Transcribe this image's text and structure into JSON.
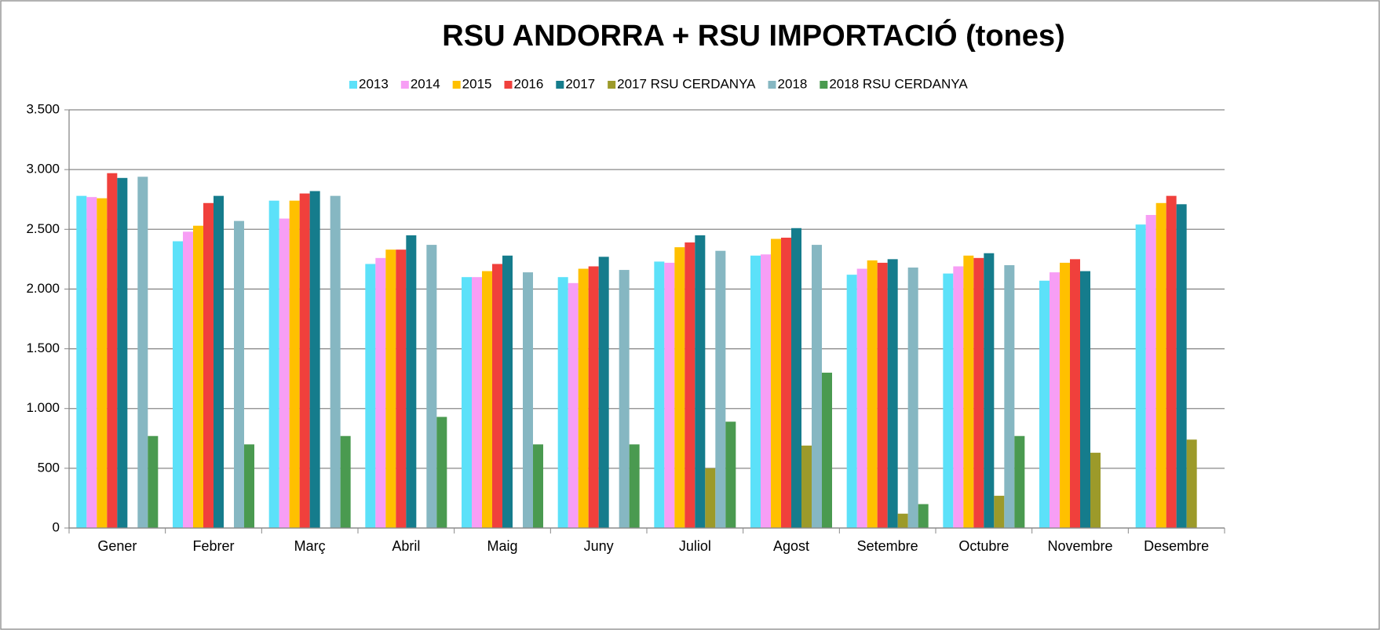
{
  "chart_data": {
    "type": "bar",
    "title": "RSU ANDORRA + RSU IMPORTACIÓ (tones)",
    "categories": [
      "Gener",
      "Febrer",
      "Març",
      "Abril",
      "Maig",
      "Juny",
      "Juliol",
      "Agost",
      "Setembre",
      "Octubre",
      "Novembre",
      "Desembre"
    ],
    "series": [
      {
        "name": "2013",
        "color": "#5ce1f9",
        "values": [
          2780,
          2400,
          2740,
          2210,
          2100,
          2100,
          2230,
          2280,
          2120,
          2130,
          2070,
          2540
        ]
      },
      {
        "name": "2014",
        "color": "#f79ef5",
        "values": [
          2770,
          2480,
          2590,
          2260,
          2100,
          2050,
          2220,
          2290,
          2170,
          2190,
          2140,
          2620
        ]
      },
      {
        "name": "2015",
        "color": "#ffc000",
        "values": [
          2760,
          2530,
          2740,
          2330,
          2150,
          2170,
          2350,
          2420,
          2240,
          2280,
          2220,
          2720
        ]
      },
      {
        "name": "2016",
        "color": "#f0403c",
        "values": [
          2970,
          2720,
          2800,
          2330,
          2210,
          2190,
          2390,
          2430,
          2220,
          2260,
          2250,
          2780
        ]
      },
      {
        "name": "2017",
        "color": "#157c8c",
        "values": [
          2930,
          2780,
          2820,
          2450,
          2280,
          2270,
          2450,
          2510,
          2250,
          2300,
          2150,
          2710
        ]
      },
      {
        "name": "2017 RSU CERDANYA",
        "color": "#9c9a2a",
        "values": [
          null,
          null,
          null,
          null,
          null,
          null,
          500,
          690,
          120,
          270,
          630,
          740
        ]
      },
      {
        "name": "2018",
        "color": "#86b7c2",
        "values": [
          2940,
          2570,
          2780,
          2370,
          2140,
          2160,
          2320,
          2370,
          2180,
          2200,
          null,
          null
        ]
      },
      {
        "name": "2018 RSU CERDANYA",
        "color": "#4a9a50",
        "values": [
          770,
          700,
          770,
          930,
          700,
          700,
          890,
          1300,
          200,
          770,
          null,
          null
        ]
      }
    ],
    "ylim": [
      0,
      3500
    ],
    "yticks": [
      0,
      500,
      {
        "value": 1000,
        "label": "1.000"
      },
      {
        "value": 1500,
        "label": "1.500"
      },
      {
        "value": 2000,
        "label": "2.000"
      },
      {
        "value": 2500,
        "label": "2.500"
      },
      {
        "value": 3000,
        "label": "3.000"
      },
      {
        "value": 3500,
        "label": "3.500"
      }
    ],
    "grid": true,
    "legend": "top"
  }
}
